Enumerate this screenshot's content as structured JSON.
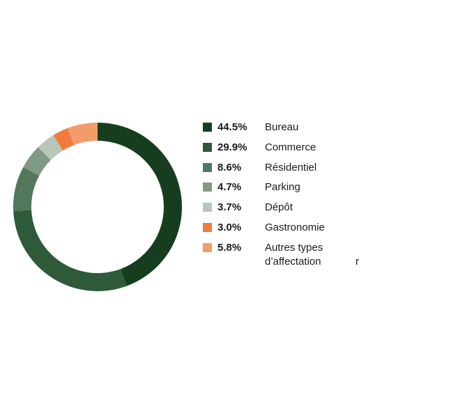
{
  "chart_data": {
    "type": "donut",
    "categories": [
      "Bureau",
      "Commerce",
      "Résidentiel",
      "Parking",
      "Dépôt",
      "Gastronomie",
      "Autres types d’affectation"
    ],
    "values": [
      44.5,
      29.9,
      8.6,
      4.7,
      3.7,
      3.0,
      5.8
    ],
    "value_labels": [
      "44.5%",
      "29.9%",
      "8.6%",
      "4.7%",
      "3.7%",
      "3.0%",
      "5.8%"
    ],
    "colors": [
      "#173d1f",
      "#2f5a3a",
      "#52775a",
      "#7f9a84",
      "#b8c6b9",
      "#f07c3c",
      "#f39c6b"
    ],
    "annotation": "r"
  }
}
